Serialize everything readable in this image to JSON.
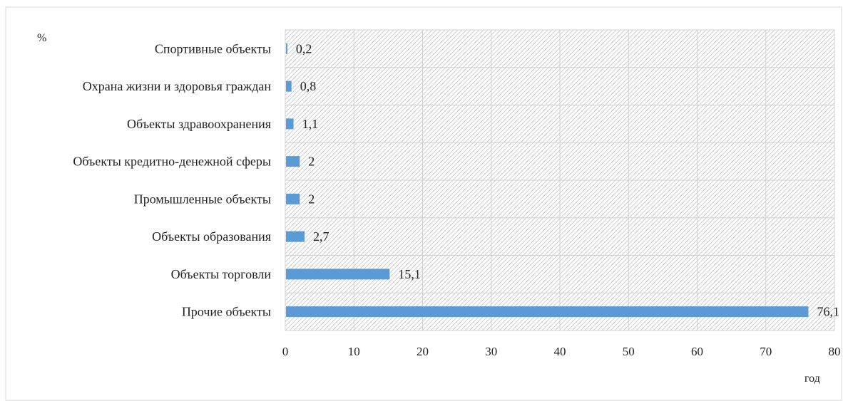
{
  "chart_data": {
    "type": "bar",
    "orientation": "horizontal",
    "categories": [
      "Спортивные объекты",
      "Охрана жизни и здоровья граждан",
      "Объекты здравоохранения",
      "Объекты кредитно-денежной  сферы",
      "Промышленные объекты",
      "Объекты образования",
      "Объекты торговли",
      "Прочие объекты"
    ],
    "values": [
      0.2,
      0.8,
      1.1,
      2,
      2,
      2.7,
      15.1,
      76.1
    ],
    "data_labels": [
      "0,2",
      "0,8",
      "1,1",
      "2",
      "2",
      "2,7",
      "15,1",
      "76,1"
    ],
    "xlim": [
      0,
      80
    ],
    "x_ticks": [
      0,
      10,
      20,
      30,
      40,
      50,
      60,
      70,
      80
    ],
    "ylabel": "%",
    "xlabel": "год",
    "bar_color": "#5b9bd5",
    "grid": true,
    "legend": "none"
  }
}
